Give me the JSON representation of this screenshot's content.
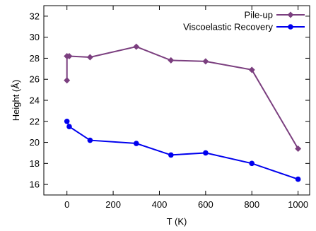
{
  "chart_data": {
    "type": "line",
    "title": "",
    "xlabel": "T (K)",
    "ylabel": "Height (Å)",
    "xlim": [
      -100,
      1050
    ],
    "ylim": [
      15,
      33
    ],
    "xticks": [
      0,
      200,
      400,
      600,
      800,
      1000
    ],
    "yticks": [
      16,
      18,
      20,
      22,
      24,
      26,
      28,
      30,
      32
    ],
    "grid": false,
    "legend_position": "top-right",
    "series": [
      {
        "name": "Pile-up",
        "color": "#7b3f7f",
        "marker": "diamond",
        "x": [
          0,
          0,
          10,
          100,
          300,
          450,
          600,
          800,
          1000
        ],
        "y": [
          25.9,
          28.2,
          28.2,
          28.1,
          29.1,
          27.8,
          27.7,
          26.9,
          19.4
        ]
      },
      {
        "name": "Viscoelastic Recovery",
        "color": "#0000ee",
        "marker": "circle",
        "x": [
          0,
          10,
          100,
          300,
          450,
          600,
          800,
          1000
        ],
        "y": [
          22.0,
          21.5,
          20.2,
          19.9,
          18.8,
          19.0,
          18.0,
          16.5
        ]
      }
    ]
  }
}
